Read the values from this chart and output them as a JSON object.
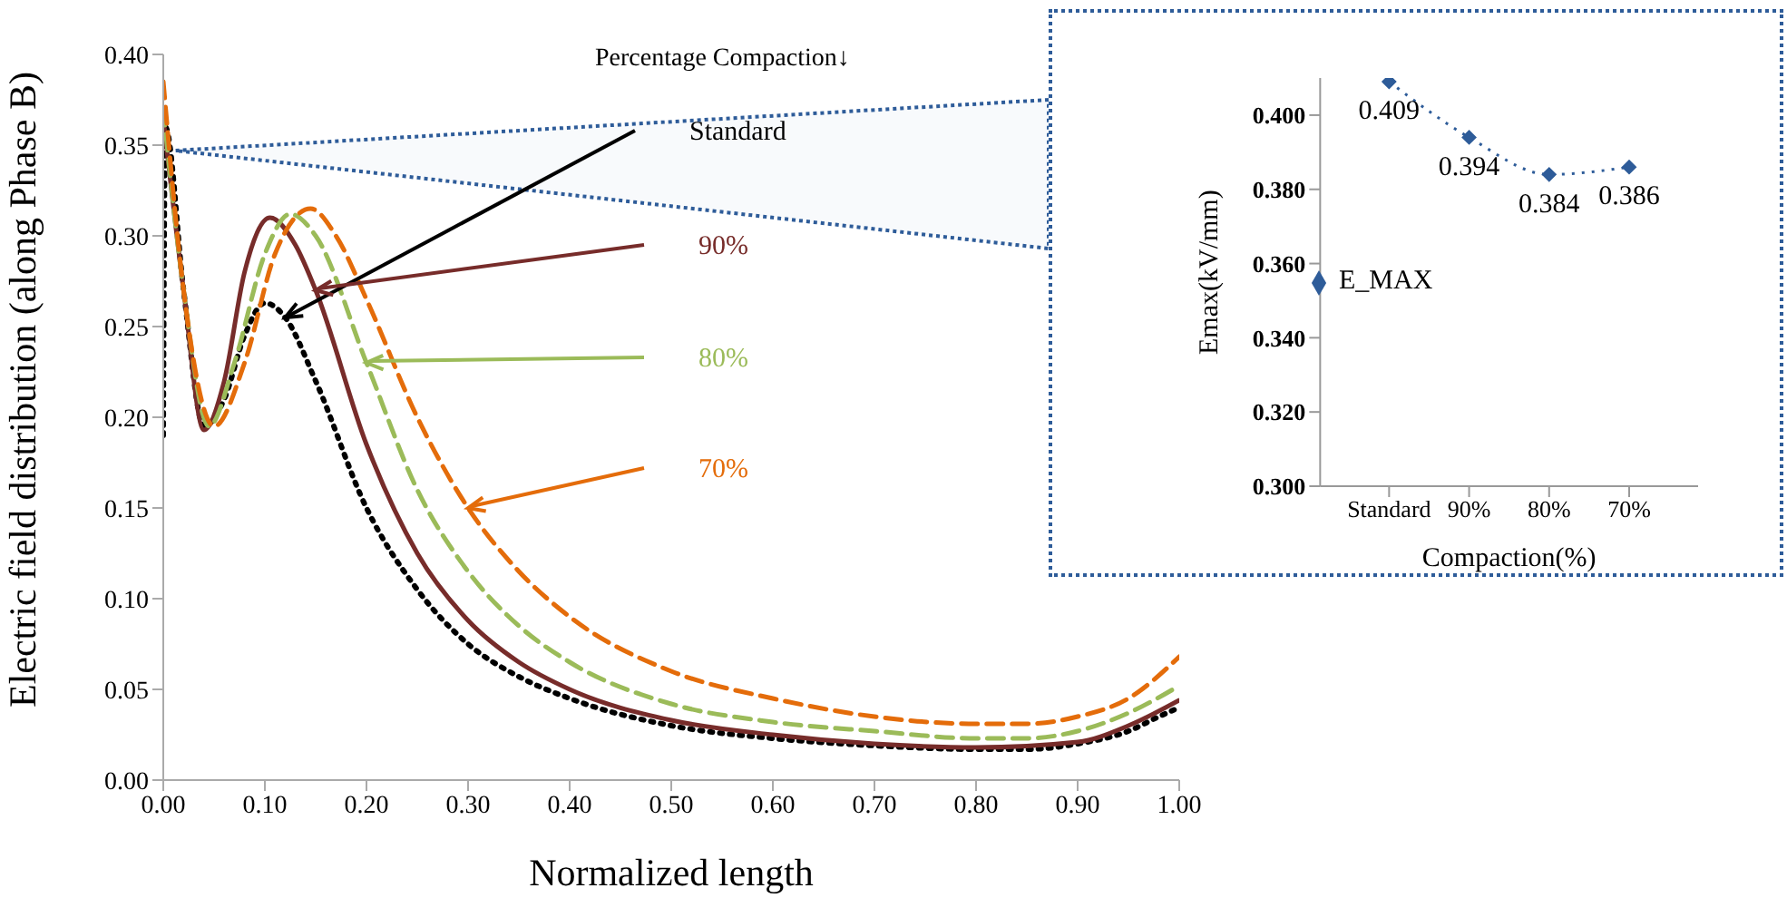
{
  "chart_data": [
    {
      "type": "line",
      "xlabel": "Normalized length",
      "ylabel": "Electric field distribution (along Phase B)",
      "xlim": [
        0,
        1
      ],
      "ylim": [
        0,
        0.4
      ],
      "xticks": [
        {
          "value": 0,
          "label": "0.00"
        },
        {
          "value": 0.1,
          "label": "0.10"
        },
        {
          "value": 0.2,
          "label": "0.20"
        },
        {
          "value": 0.3,
          "label": "0.30"
        },
        {
          "value": 0.4,
          "label": "0.40"
        },
        {
          "value": 0.5,
          "label": "0.50"
        },
        {
          "value": 0.6,
          "label": "0.60"
        },
        {
          "value": 0.7,
          "label": "0.70"
        },
        {
          "value": 0.8,
          "label": "0.80"
        },
        {
          "value": 0.9,
          "label": "0.90"
        },
        {
          "value": 1,
          "label": "1.00"
        }
      ],
      "yticks": [
        {
          "value": 0,
          "label": "0.00"
        },
        {
          "value": 0.05,
          "label": "0.05"
        },
        {
          "value": 0.1,
          "label": "0.10"
        },
        {
          "value": 0.15,
          "label": "0.15"
        },
        {
          "value": 0.2,
          "label": "0.20"
        },
        {
          "value": 0.25,
          "label": "0.25"
        },
        {
          "value": 0.3,
          "label": "0.30"
        },
        {
          "value": 0.35,
          "label": "0.35"
        },
        {
          "value": 0.4,
          "label": "0.40"
        }
      ],
      "grid": false,
      "legend": false,
      "marker": "none",
      "annotations": [
        "Percentage Compaction↓"
      ],
      "series": [
        {
          "name": "Standard",
          "color": "#000000",
          "line_style": "dotted",
          "x": [
            0,
            0.002,
            0.02,
            0.04,
            0.06,
            0.08,
            0.1,
            0.12,
            0.15,
            0.2,
            0.25,
            0.3,
            0.35,
            0.4,
            0.5,
            0.6,
            0.7,
            0.8,
            0.85,
            0.9,
            0.95,
            0.98,
            1
          ],
          "values": [
            0.19,
            0.36,
            0.27,
            0.195,
            0.21,
            0.245,
            0.263,
            0.255,
            0.22,
            0.15,
            0.105,
            0.075,
            0.057,
            0.045,
            0.03,
            0.023,
            0.019,
            0.017,
            0.017,
            0.02,
            0.027,
            0.035,
            0.04
          ]
        },
        {
          "name": "90%",
          "color": "#772c2a",
          "line_style": "solid",
          "x": [
            0,
            0.02,
            0.04,
            0.06,
            0.08,
            0.105,
            0.13,
            0.15,
            0.2,
            0.25,
            0.3,
            0.35,
            0.4,
            0.5,
            0.6,
            0.7,
            0.8,
            0.9,
            0.95,
            1
          ],
          "values": [
            0.365,
            0.27,
            0.193,
            0.22,
            0.28,
            0.31,
            0.295,
            0.27,
            0.185,
            0.125,
            0.088,
            0.065,
            0.05,
            0.033,
            0.025,
            0.02,
            0.018,
            0.021,
            0.03,
            0.044
          ]
        },
        {
          "name": "80%",
          "color": "#9bbb59",
          "line_style": "dashed",
          "x": [
            0,
            0.02,
            0.045,
            0.07,
            0.1,
            0.125,
            0.15,
            0.2,
            0.25,
            0.3,
            0.35,
            0.4,
            0.5,
            0.6,
            0.7,
            0.8,
            0.85,
            0.9,
            0.95,
            1
          ],
          "values": [
            0.37,
            0.27,
            0.195,
            0.23,
            0.29,
            0.312,
            0.3,
            0.23,
            0.16,
            0.115,
            0.085,
            0.065,
            0.042,
            0.032,
            0.027,
            0.023,
            0.023,
            0.027,
            0.037,
            0.052
          ]
        },
        {
          "name": "70%",
          "color": "#e46c0a",
          "line_style": "dashed",
          "x": [
            0,
            0.02,
            0.05,
            0.08,
            0.11,
            0.145,
            0.17,
            0.2,
            0.25,
            0.3,
            0.35,
            0.4,
            0.5,
            0.6,
            0.7,
            0.8,
            0.85,
            0.9,
            0.95,
            1
          ],
          "values": [
            0.385,
            0.27,
            0.195,
            0.23,
            0.29,
            0.315,
            0.3,
            0.265,
            0.2,
            0.15,
            0.115,
            0.09,
            0.06,
            0.045,
            0.035,
            0.031,
            0.031,
            0.035,
            0.045,
            0.068
          ]
        }
      ]
    },
    {
      "type": "line",
      "xlabel": "Compaction(%)",
      "ylabel": "Emax(kV/mm)",
      "categories": [
        "Standard",
        "90%",
        "80%",
        "70%"
      ],
      "ylim": [
        0.3,
        0.41
      ],
      "yticks": [
        {
          "value": 0.3,
          "label": "0.300"
        },
        {
          "value": 0.32,
          "label": "0.320"
        },
        {
          "value": 0.34,
          "label": "0.340"
        },
        {
          "value": 0.36,
          "label": "0.360"
        },
        {
          "value": 0.38,
          "label": "0.380"
        },
        {
          "value": 0.4,
          "label": "0.400"
        }
      ],
      "grid": false,
      "legend": "left",
      "marker": "diamond",
      "line_style": "dotted",
      "data_labels": true,
      "series": [
        {
          "name": "E_MAX",
          "color": "#2e5c99",
          "values": [
            0.409,
            0.394,
            0.384,
            0.386
          ]
        }
      ]
    }
  ]
}
